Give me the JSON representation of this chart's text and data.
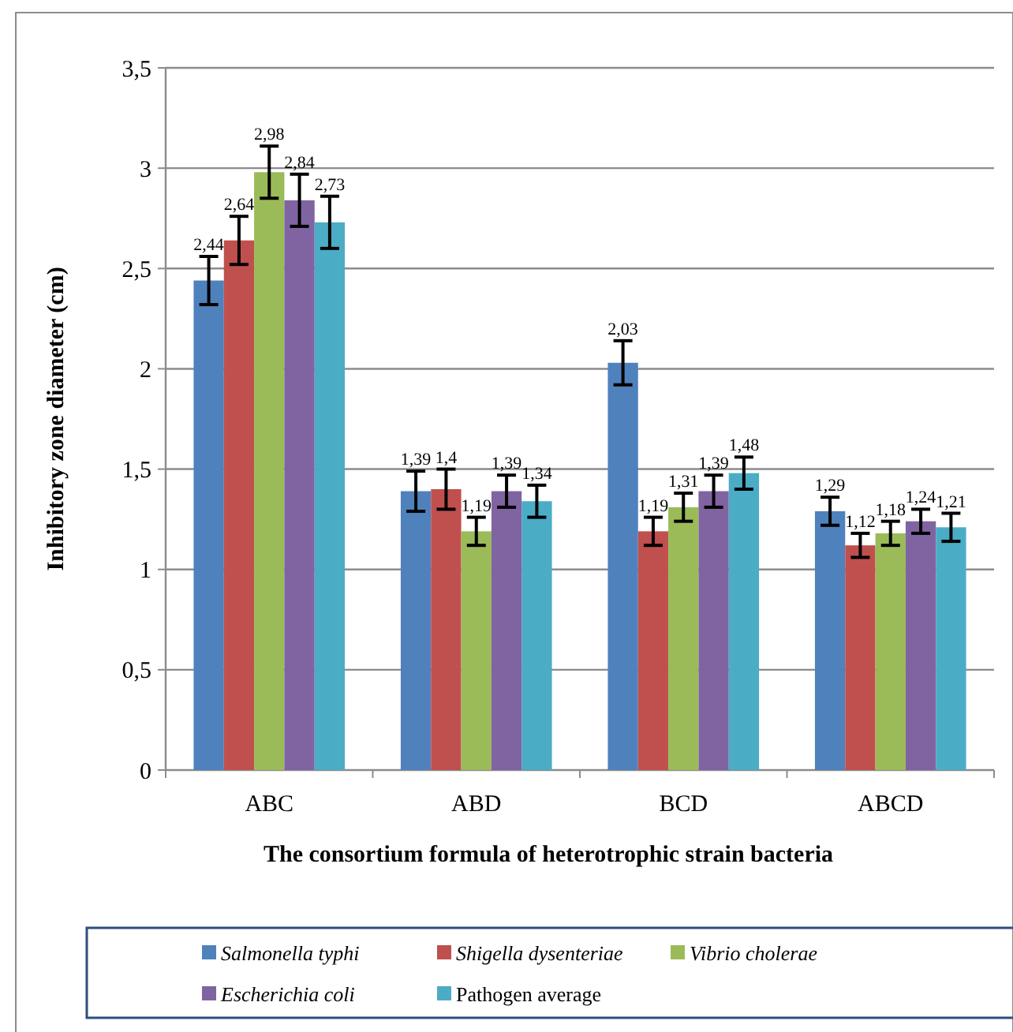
{
  "chart_data": {
    "type": "bar",
    "xlabel": "The consortium formula of heterotrophic strain bacteria",
    "ylabel": "Inhibitory zone diameter  (cm)",
    "categories": [
      "ABC",
      "ABD",
      "BCD",
      "ABCD"
    ],
    "series": [
      {
        "name": "Salmonella typhi",
        "color": "#4f81bd",
        "values": [
          2.44,
          1.39,
          2.03,
          1.29
        ],
        "errors": [
          0.12,
          0.1,
          0.11,
          0.07
        ],
        "value_labels": [
          "2,44",
          "1,39",
          "2,03",
          "1,29"
        ]
      },
      {
        "name": "Shigella dysenteriae",
        "color": "#c0504d",
        "values": [
          2.64,
          1.4,
          1.19,
          1.12
        ],
        "errors": [
          0.12,
          0.1,
          0.07,
          0.06
        ],
        "value_labels": [
          "2,64",
          "1,4",
          "1,19",
          "1,12"
        ]
      },
      {
        "name": "Vibrio cholerae",
        "color": "#9bbb59",
        "values": [
          2.98,
          1.19,
          1.31,
          1.18
        ],
        "errors": [
          0.13,
          0.07,
          0.07,
          0.06
        ],
        "value_labels": [
          "2,98",
          "1,19",
          "1,31",
          "1,18"
        ]
      },
      {
        "name": "Escherichia coli",
        "color": "#8064a2",
        "values": [
          2.84,
          1.39,
          1.39,
          1.24
        ],
        "errors": [
          0.13,
          0.08,
          0.08,
          0.06
        ],
        "value_labels": [
          "2,84",
          "1,39",
          "1,39",
          "1,24"
        ]
      },
      {
        "name": "Pathogen average",
        "color": "#4bacc6",
        "values": [
          2.73,
          1.34,
          1.48,
          1.21
        ],
        "errors": [
          0.13,
          0.08,
          0.08,
          0.07
        ],
        "value_labels": [
          "2,73",
          "1,34",
          "1,48",
          "1,21"
        ]
      }
    ],
    "ylim": [
      0,
      3.5
    ],
    "yticks": [
      {
        "value": 0,
        "label": "0"
      },
      {
        "value": 0.5,
        "label": "0,5"
      },
      {
        "value": 1,
        "label": "1"
      },
      {
        "value": 1.5,
        "label": "1,5"
      },
      {
        "value": 2,
        "label": "2"
      },
      {
        "value": 2.5,
        "label": "2,5"
      },
      {
        "value": 3,
        "label": "3"
      },
      {
        "value": 3.5,
        "label": "3,5"
      }
    ],
    "grid": "y",
    "legend": "bottom"
  }
}
